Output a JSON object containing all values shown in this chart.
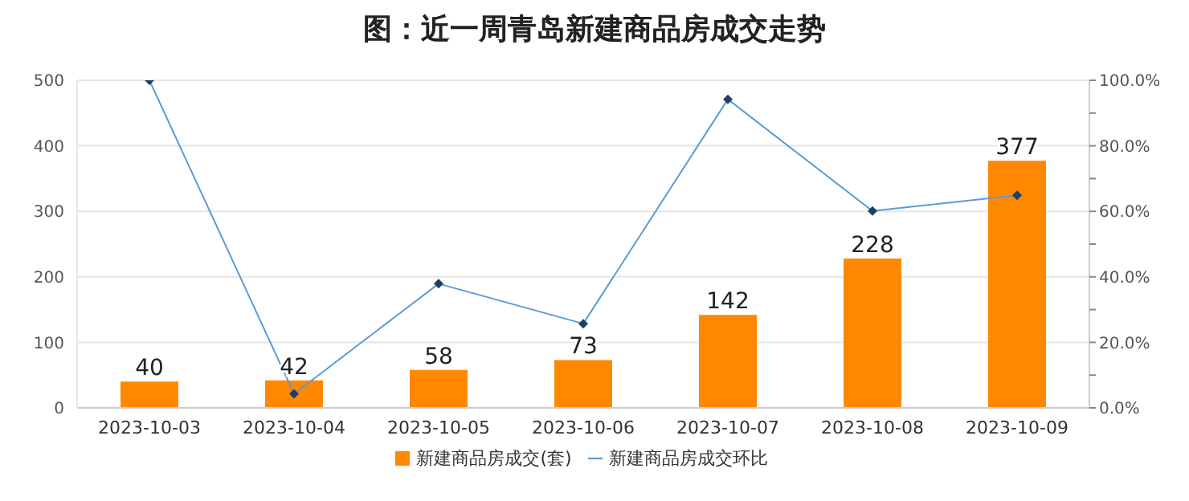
{
  "chart_data": {
    "type": "bar",
    "title": "图：近一周青岛新建商品房成交走势",
    "categories": [
      "2023-10-03",
      "2023-10-04",
      "2023-10-05",
      "2023-10-06",
      "2023-10-07",
      "2023-10-08",
      "2023-10-09"
    ],
    "series": [
      {
        "name": "新建商品房成交(套)",
        "color": "#ff8800",
        "values": [
          40,
          42,
          58,
          73,
          142,
          228,
          377
        ],
        "value_labels": [
          "40",
          "42",
          "58",
          "73",
          "142",
          "228",
          "377"
        ]
      },
      {
        "name": "新建商品房成交环比",
        "type": "line",
        "axis": "y2",
        "color": "#5b9bd5",
        "marker": "diamond",
        "values": [
          100,
          4.3,
          37.9,
          25.7,
          94.2,
          60.1,
          64.9
        ]
      }
    ],
    "ylim": [
      0,
      500
    ],
    "yticks": [
      0,
      100,
      200,
      300,
      400,
      500
    ],
    "y2lim": [
      0,
      100
    ],
    "y2ticks": [
      {
        "value": 0,
        "label": "0.0%"
      },
      {
        "value": 10,
        "label": null
      },
      {
        "value": 20,
        "label": "20.0%"
      },
      {
        "value": 30,
        "label": null
      },
      {
        "value": 40,
        "label": "40.0%"
      },
      {
        "value": 50,
        "label": null
      },
      {
        "value": 60,
        "label": "60.0%"
      },
      {
        "value": 70,
        "label": null
      },
      {
        "value": 80,
        "label": "80.0%"
      },
      {
        "value": 90,
        "label": null
      },
      {
        "value": 100,
        "label": "100.0%"
      }
    ],
    "grid": "y",
    "legend": "bottom"
  }
}
